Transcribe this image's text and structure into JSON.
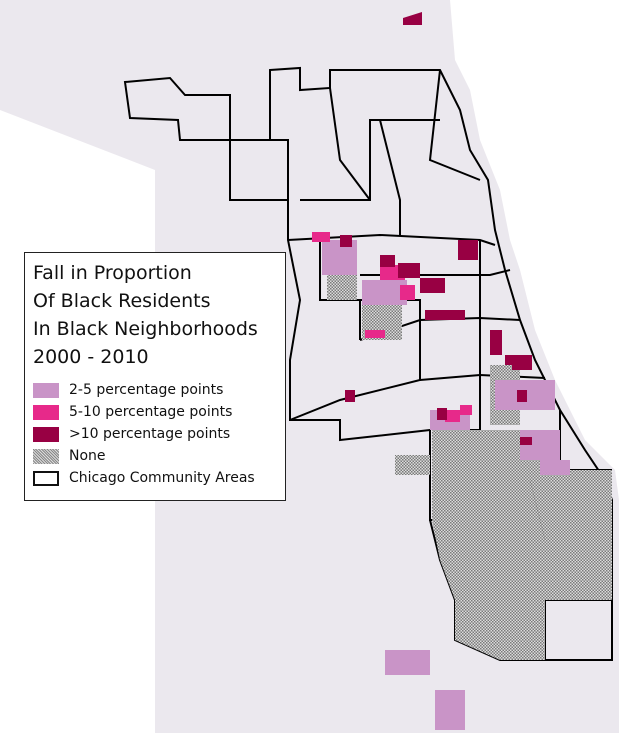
{
  "legend": {
    "title_lines": [
      "Fall in Proportion",
      "Of Black Residents",
      "In Black Neighborhoods",
      "2000 - 2010"
    ],
    "items": [
      {
        "label": "2-5 percentage points",
        "color": "#c994c7"
      },
      {
        "label": "5-10 percentage points",
        "color": "#e7298a"
      },
      {
        "label": ">10 percentage points",
        "color": "#980043"
      },
      {
        "label": "None",
        "pattern": "gray-hatch"
      },
      {
        "label": "Chicago Community Areas",
        "pattern": "black-outline"
      }
    ]
  },
  "colors": {
    "land": "#ebe8ee",
    "water": "#ffffff",
    "boundary": "#000000",
    "none_hatch": "#9a9a9a"
  }
}
